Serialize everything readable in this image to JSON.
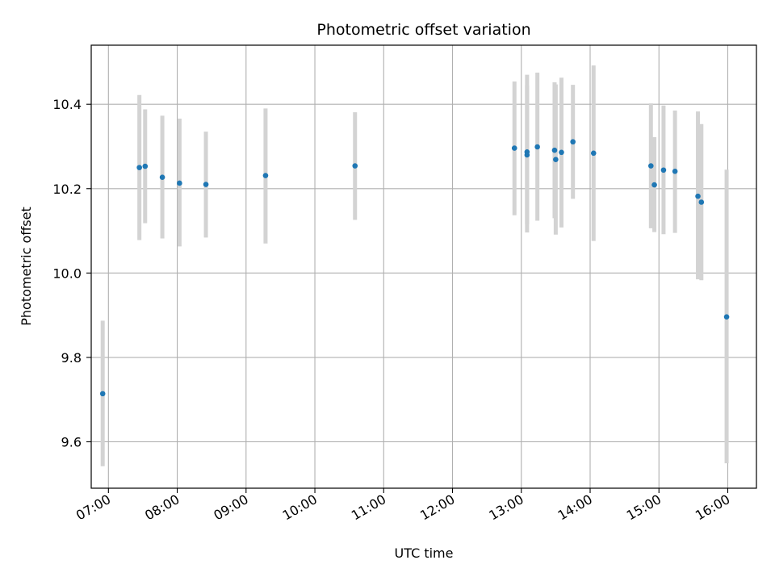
{
  "chart_data": {
    "type": "scatter",
    "title": "Photometric offset variation",
    "xlabel": "UTC time",
    "ylabel": "Photometric offset",
    "xlim": [
      "06:45",
      "16:25"
    ],
    "ylim": [
      9.49,
      10.54
    ],
    "x_ticks": [
      "07:00",
      "08:00",
      "09:00",
      "10:00",
      "11:00",
      "12:00",
      "13:00",
      "14:00",
      "15:00",
      "16:00"
    ],
    "y_ticks": [
      9.6,
      9.8,
      10.0,
      10.2,
      10.4
    ],
    "grid": true,
    "colors": {
      "point": "#1f77b4",
      "errorbar": "#d3d3d3",
      "grid": "#b0b0b0"
    },
    "points": [
      {
        "t": "06:55",
        "y": 9.714,
        "lo": 9.542,
        "hi": 9.887
      },
      {
        "t": "07:27",
        "y": 10.25,
        "lo": 10.078,
        "hi": 10.422
      },
      {
        "t": "07:32",
        "y": 10.253,
        "lo": 10.118,
        "hi": 10.388
      },
      {
        "t": "07:47",
        "y": 10.227,
        "lo": 10.082,
        "hi": 10.373
      },
      {
        "t": "08:02",
        "y": 10.213,
        "lo": 10.063,
        "hi": 10.366
      },
      {
        "t": "08:25",
        "y": 10.21,
        "lo": 10.084,
        "hi": 10.335
      },
      {
        "t": "09:17",
        "y": 10.231,
        "lo": 10.07,
        "hi": 10.39
      },
      {
        "t": "10:35",
        "y": 10.254,
        "lo": 10.126,
        "hi": 10.381
      },
      {
        "t": "12:54",
        "y": 10.296,
        "lo": 10.137,
        "hi": 10.454
      },
      {
        "t": "13:05",
        "y": 10.28,
        "lo": 10.096,
        "hi": 10.47
      },
      {
        "t": "13:05",
        "y": 10.287,
        "lo": 10.115,
        "hi": 10.445
      },
      {
        "t": "13:14",
        "y": 10.299,
        "lo": 10.124,
        "hi": 10.475
      },
      {
        "t": "13:29",
        "y": 10.291,
        "lo": 10.13,
        "hi": 10.452
      },
      {
        "t": "13:30",
        "y": 10.269,
        "lo": 10.091,
        "hi": 10.447
      },
      {
        "t": "13:35",
        "y": 10.286,
        "lo": 10.108,
        "hi": 10.463
      },
      {
        "t": "13:45",
        "y": 10.311,
        "lo": 10.176,
        "hi": 10.446
      },
      {
        "t": "14:03",
        "y": 10.284,
        "lo": 10.076,
        "hi": 10.492
      },
      {
        "t": "14:53",
        "y": 10.254,
        "lo": 10.106,
        "hi": 10.402
      },
      {
        "t": "14:56",
        "y": 10.209,
        "lo": 10.097,
        "hi": 10.322
      },
      {
        "t": "15:04",
        "y": 10.244,
        "lo": 10.092,
        "hi": 10.397
      },
      {
        "t": "15:14",
        "y": 10.241,
        "lo": 10.095,
        "hi": 10.385
      },
      {
        "t": "15:34",
        "y": 10.182,
        "lo": 9.985,
        "hi": 10.383
      },
      {
        "t": "15:37",
        "y": 10.168,
        "lo": 9.983,
        "hi": 10.353
      },
      {
        "t": "15:59",
        "y": 9.896,
        "lo": 9.549,
        "hi": 10.245
      }
    ]
  }
}
